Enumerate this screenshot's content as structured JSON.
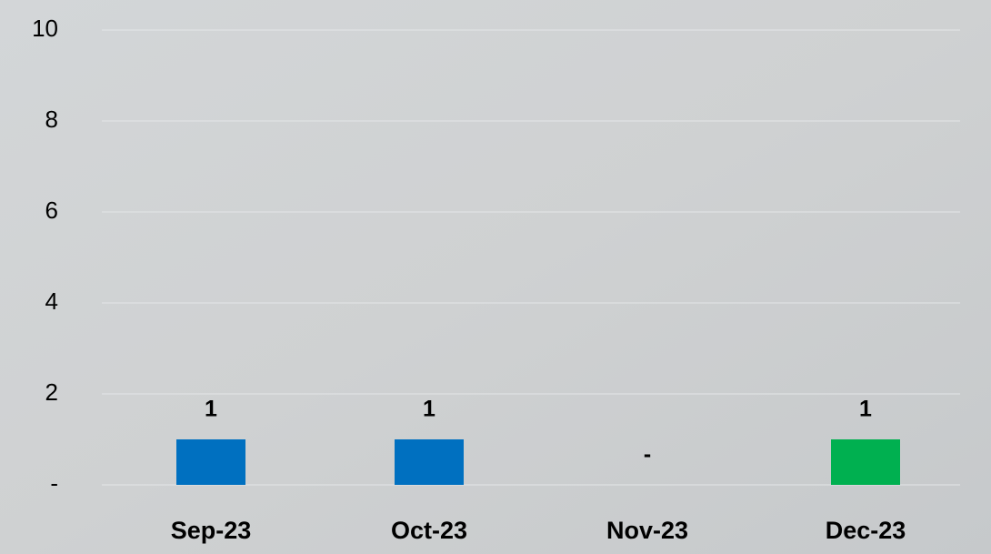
{
  "chart_data": {
    "type": "bar",
    "categories": [
      "Sep-23",
      "Oct-23",
      "Nov-23",
      "Dec-23"
    ],
    "values": [
      1,
      1,
      0,
      1
    ],
    "value_labels": [
      "1",
      "1",
      "-",
      "1"
    ],
    "colors": [
      "#0070c0",
      "#0070c0",
      "#0070c0",
      "#00b050"
    ],
    "ylim": [
      0,
      10
    ],
    "yticks": [
      {
        "value": 0,
        "label": "-"
      },
      2,
      4,
      6,
      8,
      10
    ],
    "grid": true
  }
}
